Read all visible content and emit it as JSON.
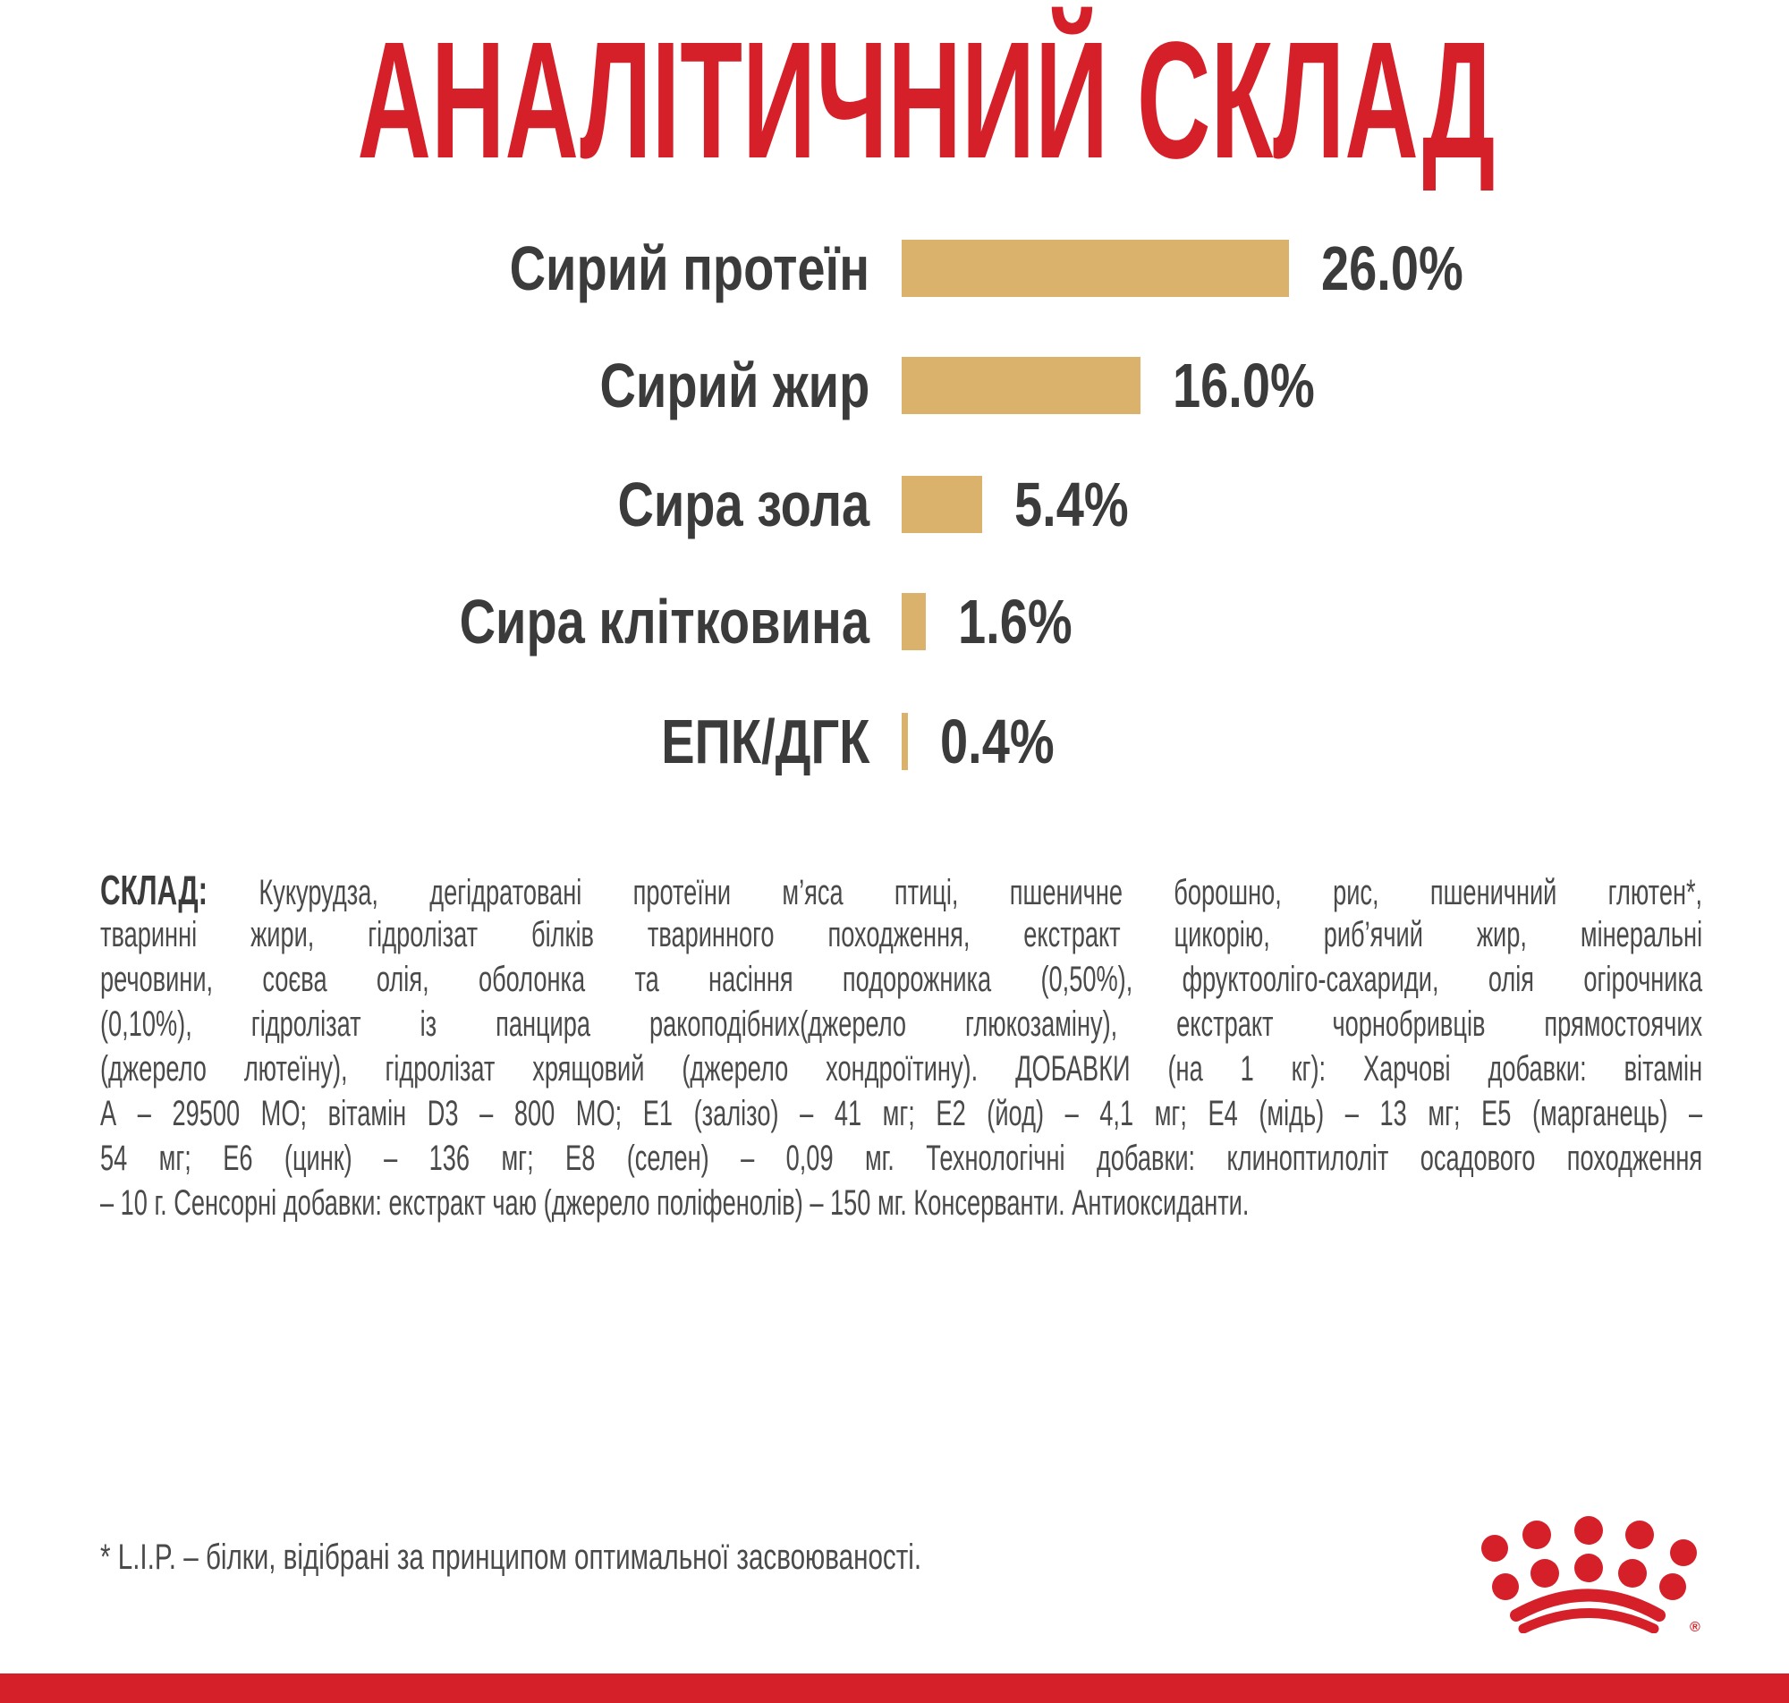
{
  "title": "АНАЛІТИЧНИЙ СКЛАД",
  "chart_data": {
    "type": "bar",
    "orientation": "horizontal",
    "categories": [
      "Сирий протеїн",
      "Сирий жир",
      "Сира зола",
      "Сира клітковина",
      "ЕПК/ДГК"
    ],
    "values": [
      26.0,
      16.0,
      5.4,
      1.6,
      0.4
    ],
    "value_labels": [
      "26.0%",
      "16.0%",
      "5.4%",
      "1.6%",
      "0.4%"
    ],
    "unit": "%",
    "bar_color": "#dbb26c"
  },
  "composition": {
    "label": "СКЛАД:",
    "lines": [
      "Кукурудза, дегідратовані протеїни м’яса птиці, пшеничне борошно, рис, пшеничний глютен*,",
      "тваринні жири, гідролізат білків тваринного походження, екстракт цикорію, риб’ячий жир, мінеральні",
      "речовини, соєва олія, оболонка та насіння подорожника (0,50%), фруктоолігo-сахариди, олія огірочника",
      "(0,10%), гідролізат із панцира ракоподібних(джерело глюкозаміну), екстракт чорнобривців прямостоячих",
      "(джерело лютеїну), гідролізат хрящовий (джерело хондроїтину). ДОБАВКИ (на 1 кг): Харчові добавки: вітамін",
      "А – 29500 МО; вітамін D3 – 800 МО; Е1 (залізо) – 41 мг; Е2 (йод) – 4,1 мг; Е4 (мідь) – 13 мг; Е5 (марганець) –",
      "54 мг; Е6 (цинк) – 136 мг; Е8 (селен) – 0,09 мг. Технологічні добавки: клиноптилоліт осадового походження",
      "– 10 г. Сенсорні добавки: екстракт чаю (джерело поліфенолів) – 150 мг. Консерванти. Антиоксиданти."
    ]
  },
  "footnote": "* L.I.P. – білки, відібрані за принципом оптимальної засвоюваності.",
  "logo": {
    "name": "crown-logo",
    "color": "#d5202a",
    "mark": "®"
  },
  "accent_color": "#d5202a"
}
